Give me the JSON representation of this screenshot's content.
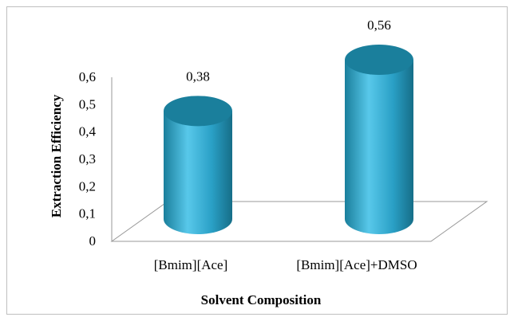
{
  "chart_data": {
    "type": "bar",
    "style": "3d-cylinder",
    "categories": [
      "[Bmim][Ace]",
      "[Bmim][Ace]+DMSO"
    ],
    "values": [
      0.38,
      0.56
    ],
    "data_labels": [
      "0,38",
      "0,56"
    ],
    "xlabel": "Solvent Composition",
    "ylabel": "Extraction Efficiency",
    "ylim": [
      0,
      0.6
    ],
    "yticks": [
      "0",
      "0,1",
      "0,2",
      "0,3",
      "0,4",
      "0,5",
      "0,6"
    ],
    "grid": false,
    "legend": "none",
    "colors": {
      "bar_side": "#2aa0c6",
      "bar_top": "#1a7f9c",
      "bar_highlight": "#58c8ea",
      "floor": "#ffffff",
      "axis": "#999999"
    }
  }
}
